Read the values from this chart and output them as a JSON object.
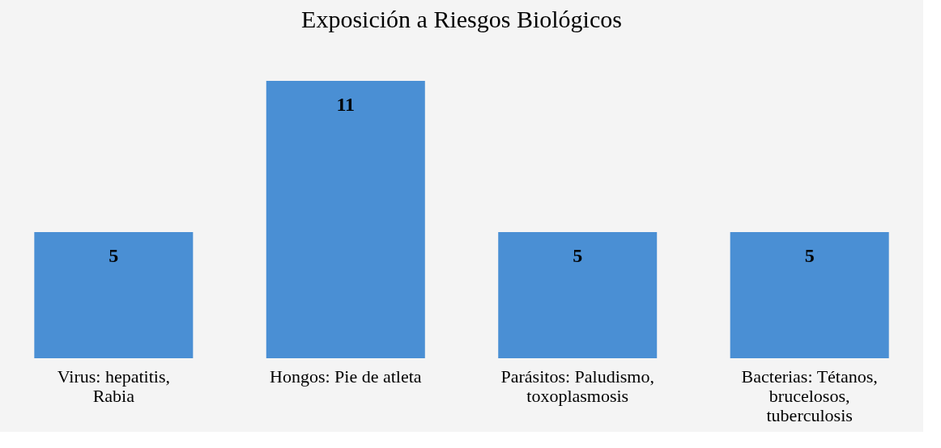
{
  "chart_data": {
    "type": "bar",
    "title": "Exposición a Riesgos Biológicos",
    "categories": [
      "Virus: hepatitis, Rabia",
      "Hongos: Pie de atleta",
      "Parásitos: Paludismo, toxoplasmosis",
      "Bacterias: Tétanos, brucelosos, tuberculosis"
    ],
    "values": [
      5,
      11,
      5,
      5
    ],
    "color": "#4a8fd4",
    "data_labels": true
  }
}
